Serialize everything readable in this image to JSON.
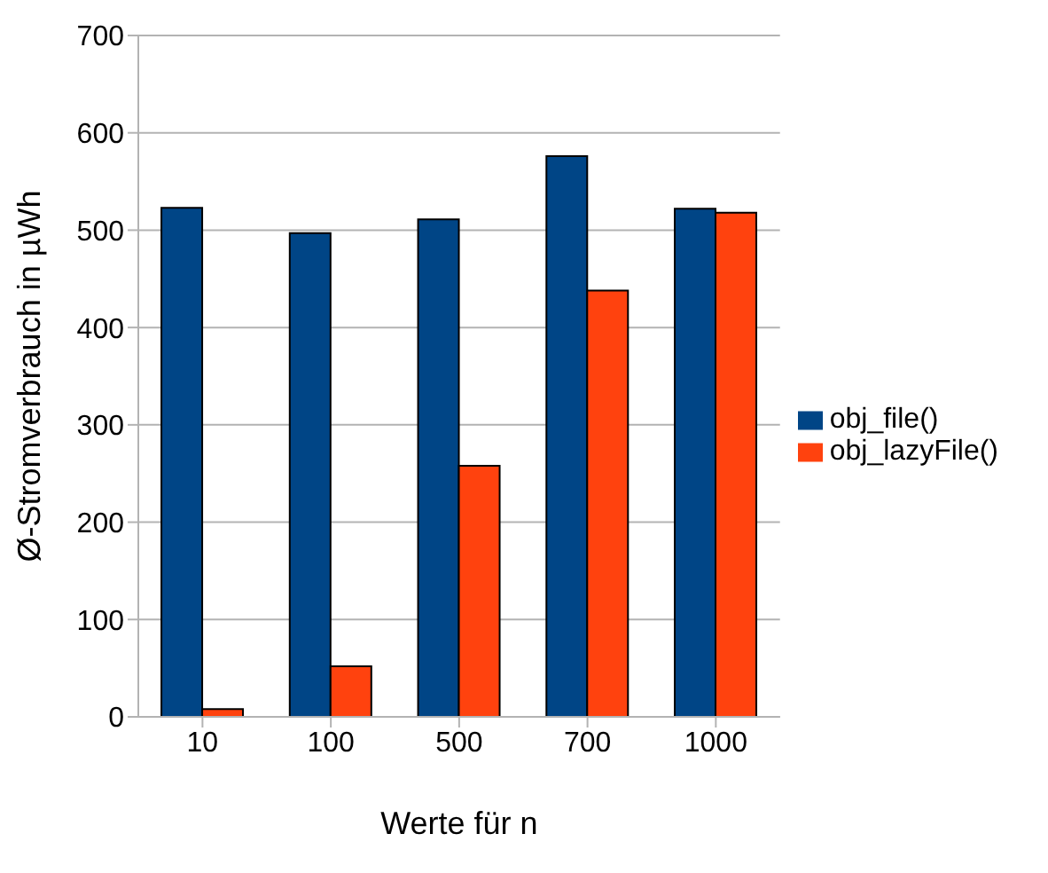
{
  "chart_data": {
    "type": "bar",
    "xlabel": "Werte für n",
    "ylabel": "Ø-Stromverbrauch in µWh",
    "categories": [
      "10",
      "100",
      "500",
      "700",
      "1000"
    ],
    "series": [
      {
        "name": "obj_file()",
        "color": "#004586",
        "values": [
          523,
          497,
          511,
          576,
          522
        ]
      },
      {
        "name": "obj_lazyFile()",
        "color": "#ff420e",
        "values": [
          8,
          52,
          258,
          438,
          518
        ]
      }
    ],
    "ylim": [
      0,
      700
    ],
    "yticks": [
      0,
      100,
      200,
      300,
      400,
      500,
      600,
      700
    ],
    "grid": "y",
    "legend": "right"
  }
}
